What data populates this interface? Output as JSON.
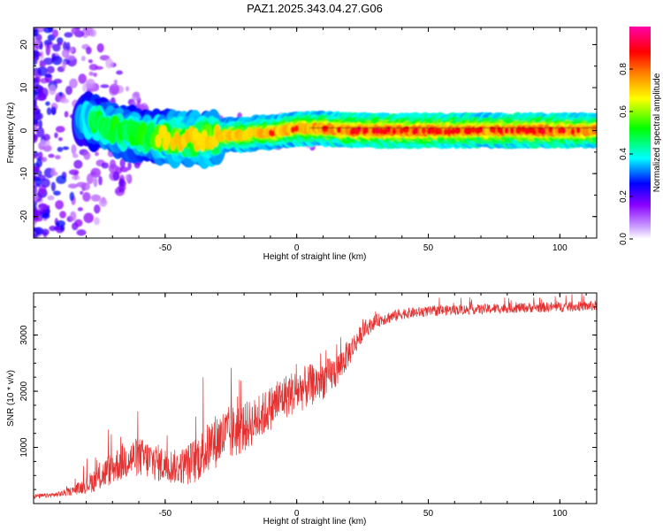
{
  "title": "PAZ1.2025.343.04.27.G06",
  "chart_data": [
    {
      "type": "heatmap",
      "title": "PAZ1.2025.343.04.27.G06",
      "xlabel": "Height of straight line (km)",
      "ylabel": "Frequency (Hz)",
      "xlim": [
        -100,
        114
      ],
      "ylim": [
        -25,
        24
      ],
      "xticks": [
        -50,
        0,
        50,
        100
      ],
      "yticks": [
        20,
        10,
        0,
        -10,
        -20
      ],
      "colorbar": {
        "label": "Normalized spectral amplitude",
        "range": [
          0,
          1
        ],
        "ticks": [
          0.0,
          0.2,
          0.4,
          0.6,
          0.8
        ],
        "colors": [
          "#ffffff",
          "#8b00ff",
          "#0000ff",
          "#00ffff",
          "#00ff00",
          "#ffff00",
          "#ff8000",
          "#ff0000",
          "#ff00aa"
        ]
      },
      "ridge": [
        {
          "x": -80,
          "f": 2.5,
          "a": 0.45
        },
        {
          "x": -75,
          "f": 1.5,
          "a": 0.55
        },
        {
          "x": -70,
          "f": 0.5,
          "a": 0.6
        },
        {
          "x": -65,
          "f": -0.5,
          "a": 0.55
        },
        {
          "x": -60,
          "f": -1.0,
          "a": 0.6
        },
        {
          "x": -55,
          "f": -1.5,
          "a": 0.6
        },
        {
          "x": -50,
          "f": -1.5,
          "a": 0.65
        },
        {
          "x": -45,
          "f": -2.0,
          "a": 0.7
        },
        {
          "x": -40,
          "f": -2.0,
          "a": 0.7
        },
        {
          "x": -35,
          "f": -2.0,
          "a": 0.7
        },
        {
          "x": -30,
          "f": -1.5,
          "a": 0.75
        },
        {
          "x": -25,
          "f": -1.0,
          "a": 0.75
        },
        {
          "x": -20,
          "f": -1.0,
          "a": 0.75
        },
        {
          "x": -15,
          "f": -0.5,
          "a": 0.75
        },
        {
          "x": -10,
          "f": -0.5,
          "a": 0.8
        },
        {
          "x": -5,
          "f": 0.0,
          "a": 0.8
        },
        {
          "x": 0,
          "f": 0.5,
          "a": 0.8
        },
        {
          "x": 5,
          "f": 0.5,
          "a": 0.85
        },
        {
          "x": 10,
          "f": 0.5,
          "a": 0.85
        },
        {
          "x": 20,
          "f": 0.0,
          "a": 0.9
        },
        {
          "x": 30,
          "f": 0.0,
          "a": 0.95
        },
        {
          "x": 40,
          "f": 0.0,
          "a": 0.92
        },
        {
          "x": 50,
          "f": 0.0,
          "a": 0.9
        },
        {
          "x": 60,
          "f": 0.0,
          "a": 0.9
        },
        {
          "x": 70,
          "f": 0.0,
          "a": 0.88
        },
        {
          "x": 80,
          "f": 0.0,
          "a": 0.9
        },
        {
          "x": 90,
          "f": 0.0,
          "a": 0.92
        },
        {
          "x": 100,
          "f": 0.0,
          "a": 0.9
        },
        {
          "x": 110,
          "f": 0.0,
          "a": 0.88
        }
      ]
    },
    {
      "type": "line",
      "xlabel": "Height of straight line (km)",
      "ylabel": "SNR (10 * v/v)",
      "xlim": [
        -100,
        114
      ],
      "ylim": [
        0,
        3750
      ],
      "xticks": [
        -50,
        0,
        50,
        100
      ],
      "yticks": [
        1000,
        2000,
        3000
      ],
      "color": "#e53030",
      "series": [
        {
          "name": "SNR",
          "x": [
            -100,
            -95,
            -90,
            -85,
            -80,
            -75,
            -70,
            -65,
            -60,
            -55,
            -50,
            -45,
            -40,
            -35,
            -30,
            -25,
            -20,
            -15,
            -10,
            -5,
            0,
            5,
            10,
            15,
            20,
            25,
            30,
            40,
            50,
            60,
            70,
            80,
            90,
            100,
            114
          ],
          "y": [
            130,
            140,
            170,
            230,
            330,
            470,
            640,
            780,
            830,
            760,
            680,
            650,
            720,
            920,
            1150,
            1250,
            1350,
            1500,
            1700,
            1900,
            2000,
            2100,
            2200,
            2350,
            2700,
            3050,
            3250,
            3380,
            3420,
            3450,
            3460,
            3480,
            3490,
            3500,
            3520
          ],
          "noise": [
            40,
            40,
            50,
            80,
            150,
            250,
            300,
            350,
            350,
            350,
            320,
            300,
            400,
            450,
            500,
            500,
            450,
            400,
            400,
            400,
            400,
            380,
            350,
            300,
            250,
            150,
            120,
            100,
            90,
            90,
            90,
            90,
            90,
            90,
            90
          ]
        }
      ]
    }
  ]
}
